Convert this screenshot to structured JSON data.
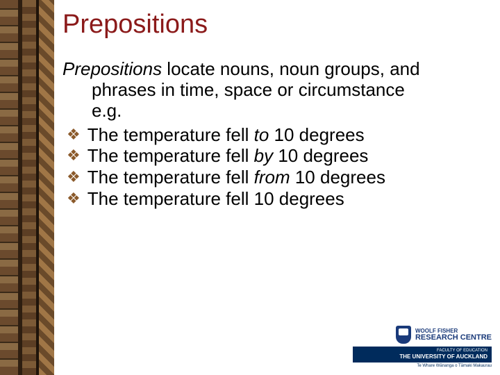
{
  "title": "Prepositions",
  "intro": {
    "line1_prefix_italic": "Prepositions",
    "line1_rest": " locate nouns, noun groups, and",
    "line2": "phrases in time, space or circumstance",
    "line3": "e.g."
  },
  "bullets": [
    {
      "pre": "The temperature fell ",
      "em": "to",
      "post": " 10 degrees"
    },
    {
      "pre": "The temperature fell ",
      "em": "by",
      "post": " 10 degrees"
    },
    {
      "pre": "The temperature fell ",
      "em": "from",
      "post": " 10 degrees"
    },
    {
      "pre": "The temperature fell ",
      "em": "",
      "post": "10 degrees"
    }
  ],
  "bullet_marker": "❖",
  "logo": {
    "wf_line1": "WOOLF FISHER",
    "wf_line2": "RESEARCH CENTRE",
    "uoa_line1": "FACULTY OF EDUCATION",
    "uoa_line2": "THE UNIVERSITY OF AUCKLAND",
    "uoa_sub": "Te Whare Wānanga o Tāmaki Makaurau"
  },
  "colors": {
    "title": "#8b1a1a",
    "bullet_marker": "#8b5a2b",
    "uoa_blue": "#002b5c"
  }
}
